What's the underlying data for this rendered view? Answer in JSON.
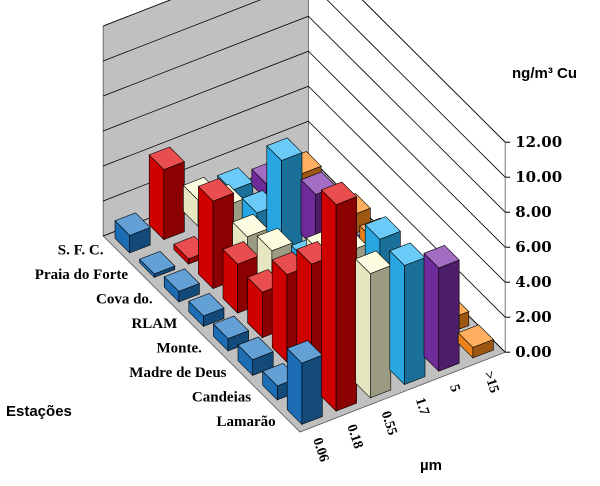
{
  "chart_data": {
    "type": "bar3d",
    "z_axis_title": "ng/m³ Cu",
    "station_axis_title": "Estações",
    "size_axis_title": "µm",
    "zlim": [
      0,
      12
    ],
    "z_ticks": [
      "0.00",
      "2.00",
      "4.00",
      "6.00",
      "8.00",
      "10.00",
      "12.00"
    ],
    "stations": [
      "Lamarão",
      "Candeias",
      "Madre de Deus",
      "Monte.",
      "RLAM",
      "Cova do.",
      "Praia do Forte",
      "S. F. C."
    ],
    "sizes": [
      "0.06",
      "0.18",
      "0.55",
      "1.7",
      "5",
      ">15"
    ],
    "values": [
      [
        3.5,
        11.8,
        7.1,
        6.8,
        5.9,
        0.6
      ],
      [
        0.8,
        7.0,
        6.9,
        6.9,
        3.5,
        0.8
      ],
      [
        0.9,
        5.0,
        5.5,
        3.9,
        2.5,
        1.3
      ],
      [
        0.7,
        2.6,
        2.4,
        1.9,
        2.0,
        0.9
      ],
      [
        0.6,
        2.8,
        2.8,
        1.5,
        1.6,
        1.1
      ],
      [
        0.6,
        5.0,
        2.2,
        5.8,
        3.1,
        1.1
      ],
      [
        0.2,
        0.3,
        2.5,
        1.4,
        0.3,
        0.4
      ],
      [
        1.0,
        4.0,
        1.5,
        1.3,
        0.9,
        0.7
      ]
    ],
    "colors": [
      "#1f77c4",
      "#e00000",
      "#fafad2",
      "#2ab4f5",
      "#7a2fa8",
      "#ff8c1a"
    ],
    "wall_color": "#c0c0c0",
    "floor_color": "#c0c0c0",
    "gridlines": true
  }
}
